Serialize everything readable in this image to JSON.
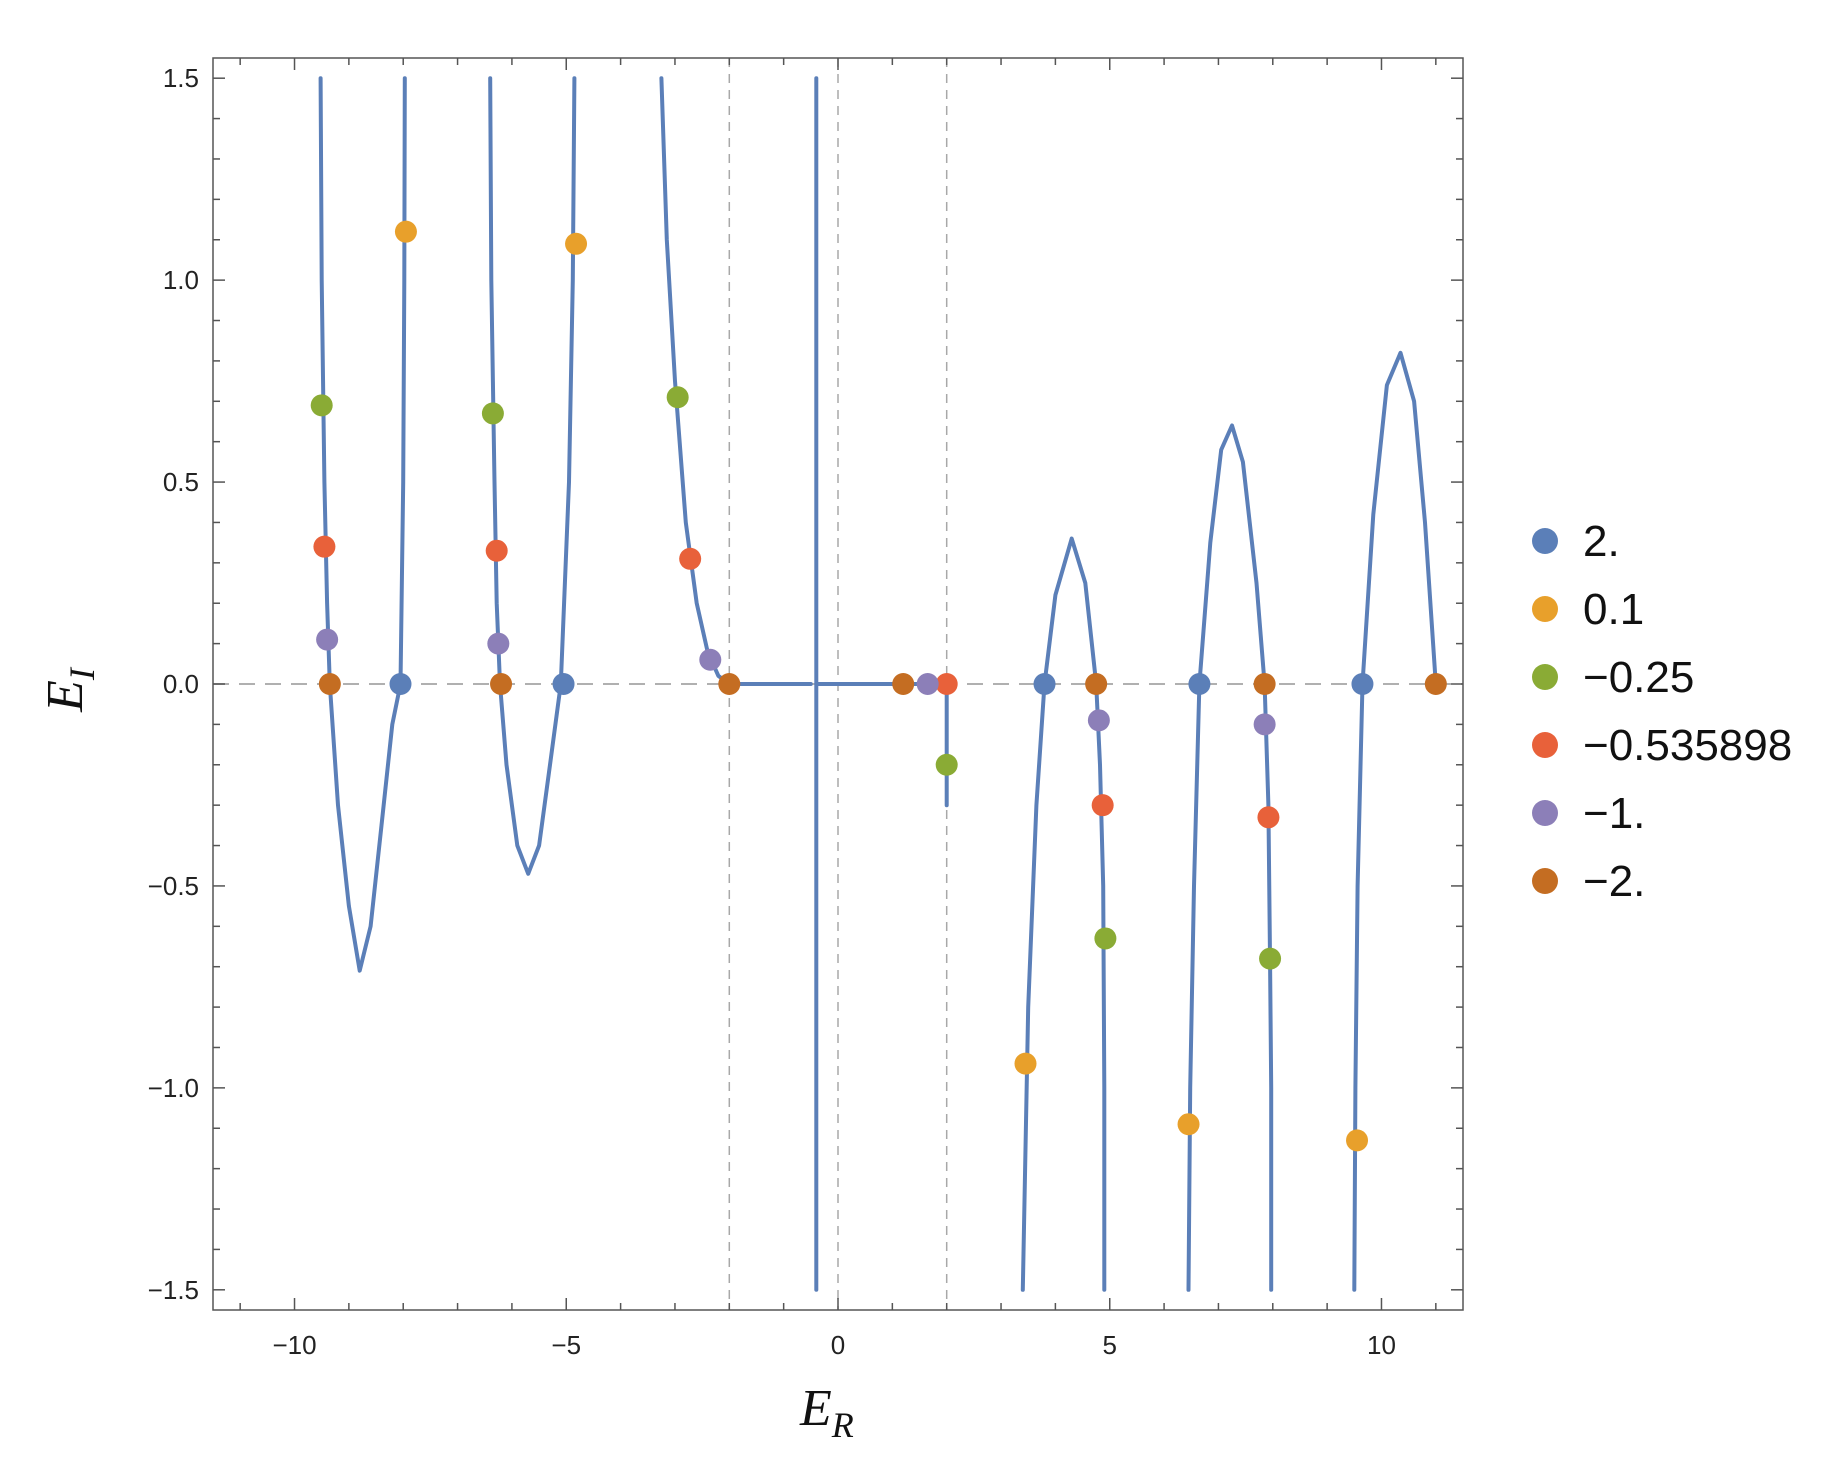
{
  "chart_data": {
    "type": "scatter",
    "xlabel": "E",
    "xlabel_sub": "R",
    "ylabel": "E",
    "ylabel_sub": "I",
    "xlim": [
      -11.5,
      11.5
    ],
    "ylim": [
      -1.55,
      1.55
    ],
    "x_ticks": [
      -10,
      -5,
      0,
      5,
      10
    ],
    "x_tick_labels": [
      "−10",
      "−5",
      "0",
      "5",
      "10"
    ],
    "y_ticks": [
      -1.5,
      -1.0,
      -0.5,
      0.0,
      0.5,
      1.0,
      1.5
    ],
    "y_tick_labels": [
      "−1.5",
      "−1.0",
      "−0.5",
      "0.0",
      "0.5",
      "1.0",
      "1.5"
    ],
    "reference_lines": {
      "vertical": [
        -2,
        0,
        2
      ],
      "horizontal": [
        0
      ]
    },
    "grid": false,
    "legend_position": "right",
    "curve_color": "#5b7fb8",
    "curves": [
      {
        "points": [
          [
            -9.52,
            1.5
          ],
          [
            -9.5,
            1.0
          ],
          [
            -9.45,
            0.5
          ],
          [
            -9.4,
            0.2
          ],
          [
            -9.35,
            0.0
          ],
          [
            -9.2,
            -0.3
          ],
          [
            -9.0,
            -0.55
          ],
          [
            -8.8,
            -0.71
          ],
          [
            -8.6,
            -0.6
          ],
          [
            -8.4,
            -0.35
          ],
          [
            -8.2,
            -0.1
          ],
          [
            -8.05,
            0.0
          ],
          [
            -8.0,
            0.5
          ],
          [
            -7.98,
            1.0
          ],
          [
            -7.97,
            1.5
          ]
        ]
      },
      {
        "points": [
          [
            -6.4,
            1.5
          ],
          [
            -6.38,
            1.0
          ],
          [
            -6.32,
            0.5
          ],
          [
            -6.28,
            0.2
          ],
          [
            -6.22,
            0.0
          ],
          [
            -6.1,
            -0.2
          ],
          [
            -5.9,
            -0.4
          ],
          [
            -5.7,
            -0.47
          ],
          [
            -5.5,
            -0.4
          ],
          [
            -5.3,
            -0.2
          ],
          [
            -5.1,
            0.0
          ],
          [
            -4.95,
            0.5
          ],
          [
            -4.88,
            1.0
          ],
          [
            -4.85,
            1.5
          ]
        ]
      },
      {
        "points": [
          [
            -3.25,
            1.5
          ],
          [
            -3.15,
            1.1
          ],
          [
            -3.0,
            0.75
          ],
          [
            -2.8,
            0.4
          ],
          [
            -2.6,
            0.2
          ],
          [
            -2.4,
            0.08
          ],
          [
            -2.2,
            0.02
          ],
          [
            -2.0,
            0.0
          ],
          [
            -0.5,
            0.0
          ]
        ]
      },
      {
        "points": [
          [
            -0.4,
            1.5
          ],
          [
            -0.4,
            -1.5
          ]
        ]
      },
      {
        "points": [
          [
            -0.4,
            0.0
          ],
          [
            1.2,
            0.0
          ],
          [
            2.0,
            0.0
          ],
          [
            2.0,
            -0.3
          ]
        ]
      },
      {
        "points": [
          [
            3.4,
            -1.5
          ],
          [
            3.5,
            -0.8
          ],
          [
            3.65,
            -0.3
          ],
          [
            3.8,
            0.0
          ],
          [
            4.0,
            0.22
          ],
          [
            4.3,
            0.36
          ],
          [
            4.55,
            0.25
          ],
          [
            4.75,
            0.0
          ],
          [
            4.82,
            -0.2
          ],
          [
            4.88,
            -0.5
          ],
          [
            4.9,
            -1.0
          ],
          [
            4.9,
            -1.5
          ]
        ]
      },
      {
        "points": [
          [
            6.45,
            -1.5
          ],
          [
            6.48,
            -1.0
          ],
          [
            6.55,
            -0.5
          ],
          [
            6.65,
            0.0
          ],
          [
            6.85,
            0.35
          ],
          [
            7.05,
            0.58
          ],
          [
            7.25,
            0.64
          ],
          [
            7.45,
            0.55
          ],
          [
            7.7,
            0.25
          ],
          [
            7.85,
            0.0
          ],
          [
            7.92,
            -0.3
          ],
          [
            7.95,
            -0.7
          ],
          [
            7.97,
            -1.0
          ],
          [
            7.97,
            -1.5
          ]
        ]
      },
      {
        "points": [
          [
            9.5,
            -1.5
          ],
          [
            9.52,
            -1.0
          ],
          [
            9.56,
            -0.5
          ],
          [
            9.65,
            0.0
          ],
          [
            9.85,
            0.42
          ],
          [
            10.1,
            0.74
          ],
          [
            10.35,
            0.82
          ],
          [
            10.6,
            0.7
          ],
          [
            10.8,
            0.4
          ],
          [
            10.95,
            0.1
          ],
          [
            11.0,
            0.0
          ]
        ]
      }
    ],
    "series": [
      {
        "name": "2.",
        "color": "#5b7fb8",
        "points": [
          [
            -8.05,
            0.0
          ],
          [
            -5.05,
            0.0
          ],
          [
            3.8,
            0.0
          ],
          [
            6.65,
            0.0
          ],
          [
            9.65,
            0.0
          ]
        ]
      },
      {
        "name": "0.1",
        "color": "#e8a02b",
        "points": [
          [
            -7.95,
            1.12
          ],
          [
            -4.82,
            1.09
          ],
          [
            3.45,
            -0.94
          ],
          [
            6.45,
            -1.09
          ],
          [
            9.55,
            -1.13
          ]
        ]
      },
      {
        "name": "−0.25",
        "color": "#8aab35",
        "points": [
          [
            -9.5,
            0.69
          ],
          [
            -6.35,
            0.67
          ],
          [
            -2.95,
            0.71
          ],
          [
            2.0,
            -0.2
          ],
          [
            4.92,
            -0.63
          ],
          [
            7.95,
            -0.68
          ]
        ]
      },
      {
        "name": "−0.535898",
        "color": "#e8613a",
        "points": [
          [
            -9.45,
            0.34
          ],
          [
            -6.28,
            0.33
          ],
          [
            -2.72,
            0.31
          ],
          [
            2.0,
            0.0
          ],
          [
            4.87,
            -0.3
          ],
          [
            7.92,
            -0.33
          ]
        ]
      },
      {
        "name": "−1.",
        "color": "#8c7fb8",
        "points": [
          [
            -9.4,
            0.11
          ],
          [
            -6.25,
            0.1
          ],
          [
            -2.35,
            0.06
          ],
          [
            1.65,
            0.0
          ],
          [
            4.8,
            -0.09
          ],
          [
            7.85,
            -0.1
          ]
        ]
      },
      {
        "name": "−2.",
        "color": "#c46d22",
        "points": [
          [
            -9.35,
            0.0
          ],
          [
            -6.2,
            0.0
          ],
          [
            -2.0,
            0.0
          ],
          [
            1.2,
            0.0
          ],
          [
            4.75,
            0.0
          ],
          [
            7.85,
            0.0
          ],
          [
            11.0,
            0.0
          ]
        ]
      }
    ]
  }
}
